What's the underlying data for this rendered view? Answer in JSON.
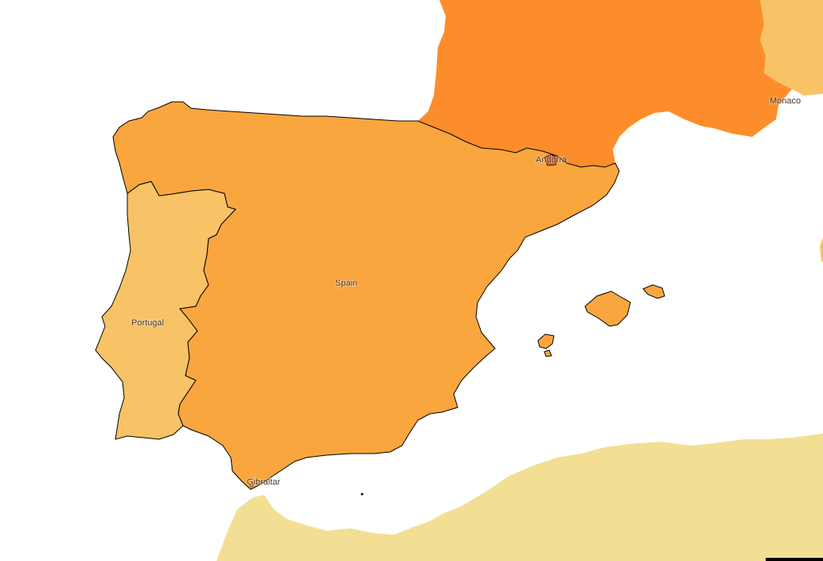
{
  "map": {
    "colors": {
      "water": "#ffffff",
      "spain": "#faa63f",
      "france": "#fd8d2a",
      "portugal": "#f8c266",
      "andorra": "#ef5a1f",
      "north_africa": "#f2df94",
      "italy": "#f8c266",
      "border": "#000000"
    },
    "labels": {
      "spain": "Spain",
      "portugal": "Portugal",
      "andorra": "Andorra",
      "monaco": "Monaco",
      "gibraltar": "Gibraltar"
    }
  }
}
